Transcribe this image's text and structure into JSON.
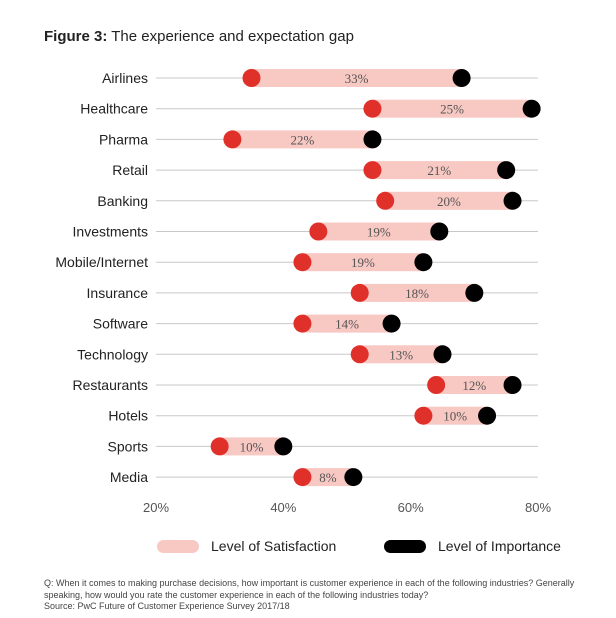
{
  "figure": {
    "label": "Figure 3:",
    "title": "The experience and expectation gap"
  },
  "legend": {
    "satisfaction": "Level of Satisfaction",
    "importance": "Level of Importance"
  },
  "footnote": {
    "question": "Q: When it comes to making purchase decisions, how important is customer experience in each of the following industries? Generally speaking, how would you rate the customer experience in each of the following industries today?",
    "source": "Source: PwC Future of Customer Experience Survey 2017/18"
  },
  "colors": {
    "satisfaction_dot": "#e0302a",
    "gap_band": "#f8c8c3",
    "importance_dot": "#000000",
    "gridline": "#c8c8c8"
  },
  "chart_data": {
    "type": "dumbbell",
    "xlim": [
      20,
      80
    ],
    "x_ticks": [
      20,
      40,
      60,
      80
    ],
    "x_tick_labels": [
      "20%",
      "40%",
      "60%",
      "80%"
    ],
    "categories": [
      "Airlines",
      "Healthcare",
      "Pharma",
      "Retail",
      "Banking",
      "Investments",
      "Mobile/Internet",
      "Insurance",
      "Software",
      "Technology",
      "Restaurants",
      "Hotels",
      "Sports",
      "Media"
    ],
    "series": [
      {
        "name": "Level of Satisfaction",
        "values": [
          35,
          54,
          32,
          54,
          56,
          45.5,
          43,
          52,
          43,
          52,
          64,
          62,
          30,
          43
        ]
      },
      {
        "name": "Level of Importance",
        "values": [
          68,
          79,
          54,
          75,
          76,
          64.5,
          62,
          70,
          57,
          65,
          76,
          72,
          40,
          51
        ]
      }
    ],
    "gap_labels": [
      "33%",
      "25%",
      "22%",
      "21%",
      "20%",
      "19%",
      "19%",
      "18%",
      "14%",
      "13%",
      "12%",
      "10%",
      "10%",
      "8%"
    ],
    "grid": true,
    "legend_position": "bottom"
  }
}
